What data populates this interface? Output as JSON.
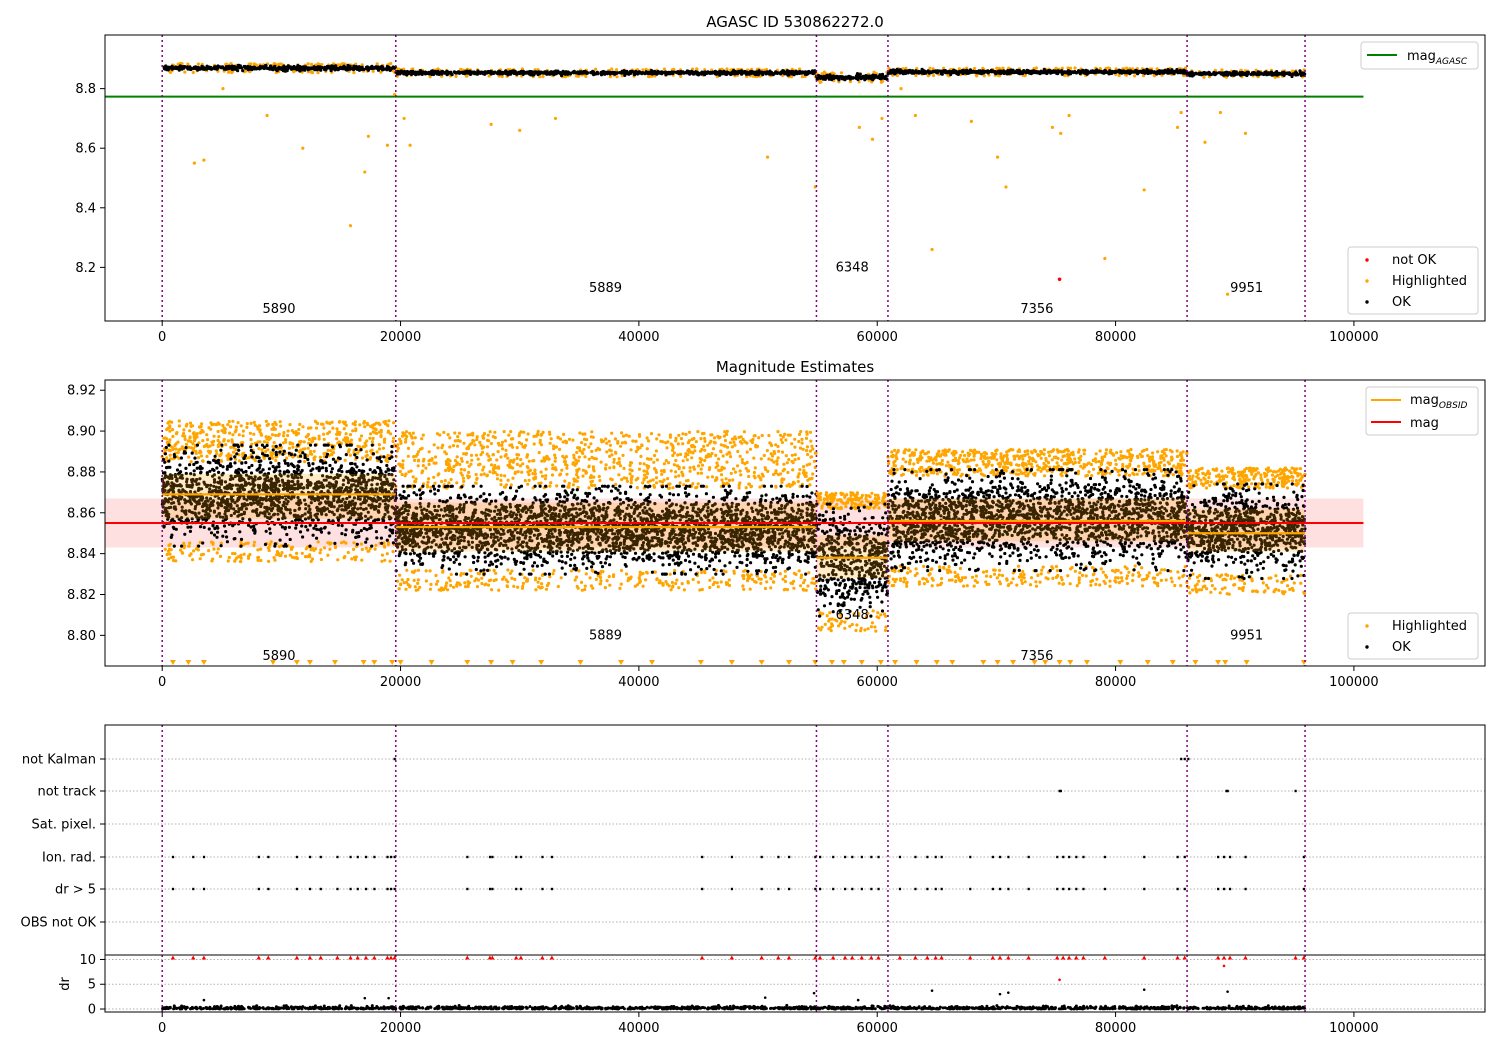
{
  "figure_title": "AGASC ID 530862272.0",
  "chart_data": [
    {
      "panel": "top",
      "type": "scatter",
      "title": "AGASC ID 530862272.0",
      "xlim": [
        -4800,
        111000
      ],
      "ylim": [
        8.02,
        8.98
      ],
      "x_ticks": [
        0,
        20000,
        40000,
        60000,
        80000,
        100000
      ],
      "x_tick_labels": [
        "0",
        "20000",
        "40000",
        "60000",
        "80000",
        "100000"
      ],
      "y_ticks": [
        8.2,
        8.4,
        8.6,
        8.8
      ],
      "y_tick_labels": [
        "8.2",
        "8.4",
        "8.6",
        "8.8"
      ],
      "obs_boundaries": [
        0,
        19600,
        54900,
        60900,
        86000,
        95900
      ],
      "obsids": [
        {
          "label": "5890",
          "x": 9800,
          "y": 8.06
        },
        {
          "label": "5889",
          "x": 37200,
          "y": 8.13
        },
        {
          "label": "6348",
          "x": 57900,
          "y": 8.2
        },
        {
          "label": "7356",
          "x": 73400,
          "y": 8.06
        },
        {
          "label": "9951",
          "x": 91000,
          "y": 8.13
        }
      ],
      "segments": [
        {
          "x": [
            0,
            19600
          ],
          "mag": 8.869,
          "spread": 0.007
        },
        {
          "x": [
            19600,
            54900
          ],
          "mag": 8.853,
          "spread": 0.006
        },
        {
          "x": [
            54900,
            60900
          ],
          "mag": 8.838,
          "spread": 0.008
        },
        {
          "x": [
            60900,
            86000
          ],
          "mag": 8.856,
          "spread": 0.006
        },
        {
          "x": [
            86000,
            95900
          ],
          "mag": 8.85,
          "spread": 0.006
        }
      ],
      "lines": [
        {
          "name": "mag_AGASC",
          "y": 8.773,
          "x": [
            -4800,
            100800
          ],
          "color": "#008000"
        }
      ],
      "highlighted_outliers": [
        [
          2700,
          8.55
        ],
        [
          3500,
          8.56
        ],
        [
          5100,
          8.8
        ],
        [
          8800,
          8.71
        ],
        [
          11800,
          8.6
        ],
        [
          15800,
          8.34
        ],
        [
          17000,
          8.52
        ],
        [
          17300,
          8.64
        ],
        [
          18900,
          8.61
        ],
        [
          19500,
          8.78
        ],
        [
          20300,
          8.7
        ],
        [
          20800,
          8.61
        ],
        [
          27600,
          8.68
        ],
        [
          30000,
          8.66
        ],
        [
          33000,
          8.7
        ],
        [
          50800,
          8.57
        ],
        [
          54800,
          8.47
        ],
        [
          58500,
          8.67
        ],
        [
          59600,
          8.63
        ],
        [
          60400,
          8.7
        ],
        [
          62000,
          8.8
        ],
        [
          63200,
          8.71
        ],
        [
          64600,
          8.26
        ],
        [
          67900,
          8.69
        ],
        [
          70100,
          8.57
        ],
        [
          70800,
          8.47
        ],
        [
          74700,
          8.67
        ],
        [
          75400,
          8.65
        ],
        [
          76100,
          8.71
        ],
        [
          79100,
          8.23
        ],
        [
          82400,
          8.46
        ],
        [
          85200,
          8.67
        ],
        [
          85500,
          8.72
        ],
        [
          87500,
          8.62
        ],
        [
          88800,
          8.72
        ],
        [
          89400,
          8.11
        ],
        [
          90900,
          8.65
        ]
      ],
      "not_ok": [
        [
          75300,
          8.16
        ]
      ],
      "legend": {
        "lines": [
          "mag"
        ],
        "subscript": "AGASC",
        "points": [
          "not OK",
          "Highlighted",
          "OK"
        ]
      }
    },
    {
      "panel": "middle",
      "type": "scatter",
      "title": "Magnitude Estimates",
      "xlim": [
        -4800,
        111000
      ],
      "ylim": [
        8.785,
        8.925
      ],
      "x_ticks": [
        0,
        20000,
        40000,
        60000,
        80000,
        100000
      ],
      "x_tick_labels": [
        "0",
        "20000",
        "40000",
        "60000",
        "80000",
        "100000"
      ],
      "y_ticks": [
        8.8,
        8.82,
        8.84,
        8.86,
        8.88,
        8.9,
        8.92
      ],
      "y_tick_labels": [
        "8.80",
        "8.82",
        "8.84",
        "8.86",
        "8.88",
        "8.90",
        "8.92"
      ],
      "mag": 8.855,
      "mag_band": [
        8.843,
        8.867
      ],
      "segments": [
        {
          "x": [
            0,
            19600
          ],
          "mag_obsid": 8.869,
          "band": [
            8.857,
            8.879
          ],
          "ok_range": [
            8.846,
            8.892
          ],
          "hi_range": [
            8.885,
            8.905
          ]
        },
        {
          "x": [
            19600,
            54900
          ],
          "mag_obsid": 8.853,
          "band": [
            8.841,
            8.865
          ],
          "ok_range": [
            8.832,
            8.872
          ],
          "hi_range": [
            8.872,
            8.9
          ]
        },
        {
          "x": [
            54900,
            60900
          ],
          "mag_obsid": 8.838,
          "band": [
            8.828,
            8.849
          ],
          "ok_range": [
            8.812,
            8.863
          ],
          "hi_range": [
            8.862,
            8.87
          ]
        },
        {
          "x": [
            60900,
            86000
          ],
          "mag_obsid": 8.856,
          "band": [
            8.846,
            8.867
          ],
          "ok_range": [
            8.834,
            8.88
          ],
          "hi_range": [
            8.878,
            8.891
          ]
        },
        {
          "x": [
            86000,
            95900
          ],
          "mag_obsid": 8.85,
          "band": [
            8.841,
            8.862
          ],
          "ok_range": [
            8.83,
            8.873
          ],
          "hi_range": [
            8.872,
            8.882
          ]
        }
      ],
      "obsids": [
        {
          "label": "5890",
          "x": 9800,
          "y": 8.79
        },
        {
          "label": "5889",
          "x": 37200,
          "y": 8.8
        },
        {
          "label": "6348",
          "x": 57900,
          "y": 8.81
        },
        {
          "label": "7356",
          "x": 73400,
          "y": 8.79
        },
        {
          "label": "9951",
          "x": 91000,
          "y": 8.8
        }
      ],
      "low_markers_x": [
        900,
        2200,
        3500,
        9300,
        11300,
        12400,
        14500,
        16900,
        17800,
        19300,
        20000,
        22600,
        25600,
        27600,
        29400,
        31800,
        35100,
        38500,
        41100,
        45200,
        47800,
        50300,
        52600,
        54800,
        56200,
        57200,
        58700,
        60300,
        61500,
        63300,
        65000,
        66300,
        68900,
        70100,
        71400,
        73200,
        74100,
        75300,
        76200,
        77600,
        80400,
        82700,
        84800,
        86700,
        88600,
        89200,
        91000,
        95800
      ],
      "legend": {
        "lines": [
          "mag",
          "mag"
        ],
        "subscript": "OBSID",
        "points": [
          "Highlighted",
          "OK"
        ]
      }
    },
    {
      "panel": "bottom",
      "type": "scatter",
      "xlim": [
        -4800,
        111000
      ],
      "x_ticks": [
        0,
        20000,
        40000,
        60000,
        80000,
        100000
      ],
      "x_tick_labels": [
        "0",
        "20000",
        "40000",
        "60000",
        "80000",
        "100000"
      ],
      "flag_rows": [
        "not Kalman",
        "not track",
        "Sat. pixel.",
        "Ion. rad.",
        "dr > 5",
        "OBS not OK"
      ],
      "flags": {
        "not Kalman": [
          19500,
          85500,
          85800,
          86100
        ],
        "not track": [
          75300,
          75400,
          89300,
          89400,
          95100
        ],
        "Sat. pixel.": [],
        "Ion. rad.": [
          900,
          2600,
          3500,
          8100,
          8900,
          11300,
          12400,
          13300,
          14700,
          15800,
          16400,
          17100,
          17800,
          18900,
          19200,
          19500,
          25600,
          27500,
          27700,
          29700,
          30100,
          31900,
          32700,
          45300,
          47800,
          50300,
          51700,
          52600,
          54800,
          55200,
          56300,
          57300,
          57900,
          58700,
          59500,
          60100,
          61900,
          63200,
          64200,
          64900,
          65400,
          67800,
          69700,
          70300,
          71000,
          72700,
          75100,
          75600,
          76100,
          76700,
          77300,
          79100,
          82400,
          85200,
          85800,
          88600,
          89100,
          89600,
          90900,
          95800
        ],
        "dr > 5": [
          900,
          2600,
          3500,
          8100,
          8900,
          11300,
          12400,
          13300,
          14700,
          15800,
          16400,
          17100,
          17800,
          18900,
          19200,
          19500,
          25600,
          27500,
          27700,
          29700,
          30100,
          31900,
          32700,
          45300,
          47800,
          50300,
          51700,
          52600,
          54800,
          55200,
          56300,
          57300,
          57900,
          58700,
          59500,
          60100,
          61900,
          63200,
          64200,
          64900,
          65400,
          67800,
          69700,
          70300,
          71000,
          72700,
          75100,
          75600,
          76100,
          76700,
          77300,
          79100,
          82400,
          85200,
          85800,
          88600,
          89100,
          89600,
          90900,
          95800
        ],
        "OBS not OK": []
      },
      "dr": {
        "ylabel": "dr",
        "ylim": [
          -0.6,
          10.9
        ],
        "y_ticks": [
          0,
          5,
          10
        ],
        "y_tick_labels": [
          "0",
          "5",
          "10"
        ],
        "clipped_x": [
          900,
          2600,
          3500,
          8100,
          8900,
          11300,
          12400,
          13300,
          14700,
          15800,
          16400,
          17100,
          17800,
          18900,
          19200,
          19500,
          25600,
          27500,
          27700,
          29700,
          30100,
          31900,
          32700,
          45300,
          47800,
          50300,
          51700,
          52600,
          54800,
          55200,
          56300,
          57300,
          57900,
          58700,
          59500,
          60100,
          61900,
          63200,
          64200,
          64900,
          65400,
          67800,
          69700,
          70300,
          71000,
          72700,
          75100,
          75600,
          76100,
          76700,
          77300,
          79100,
          82400,
          85200,
          85800,
          88600,
          89100,
          89600,
          90900,
          95100,
          95800
        ],
        "scattered": [
          [
            3500,
            1.8
          ],
          [
            17000,
            2.2
          ],
          [
            19000,
            2.2
          ],
          [
            50600,
            2.3
          ],
          [
            54700,
            3.2
          ],
          [
            58400,
            1.8
          ],
          [
            64600,
            3.7
          ],
          [
            70300,
            3.0
          ],
          [
            71000,
            3.3
          ],
          [
            75300,
            5.9
          ],
          [
            82400,
            3.9
          ],
          [
            89100,
            8.7
          ],
          [
            89400,
            3.5
          ]
        ]
      }
    }
  ]
}
